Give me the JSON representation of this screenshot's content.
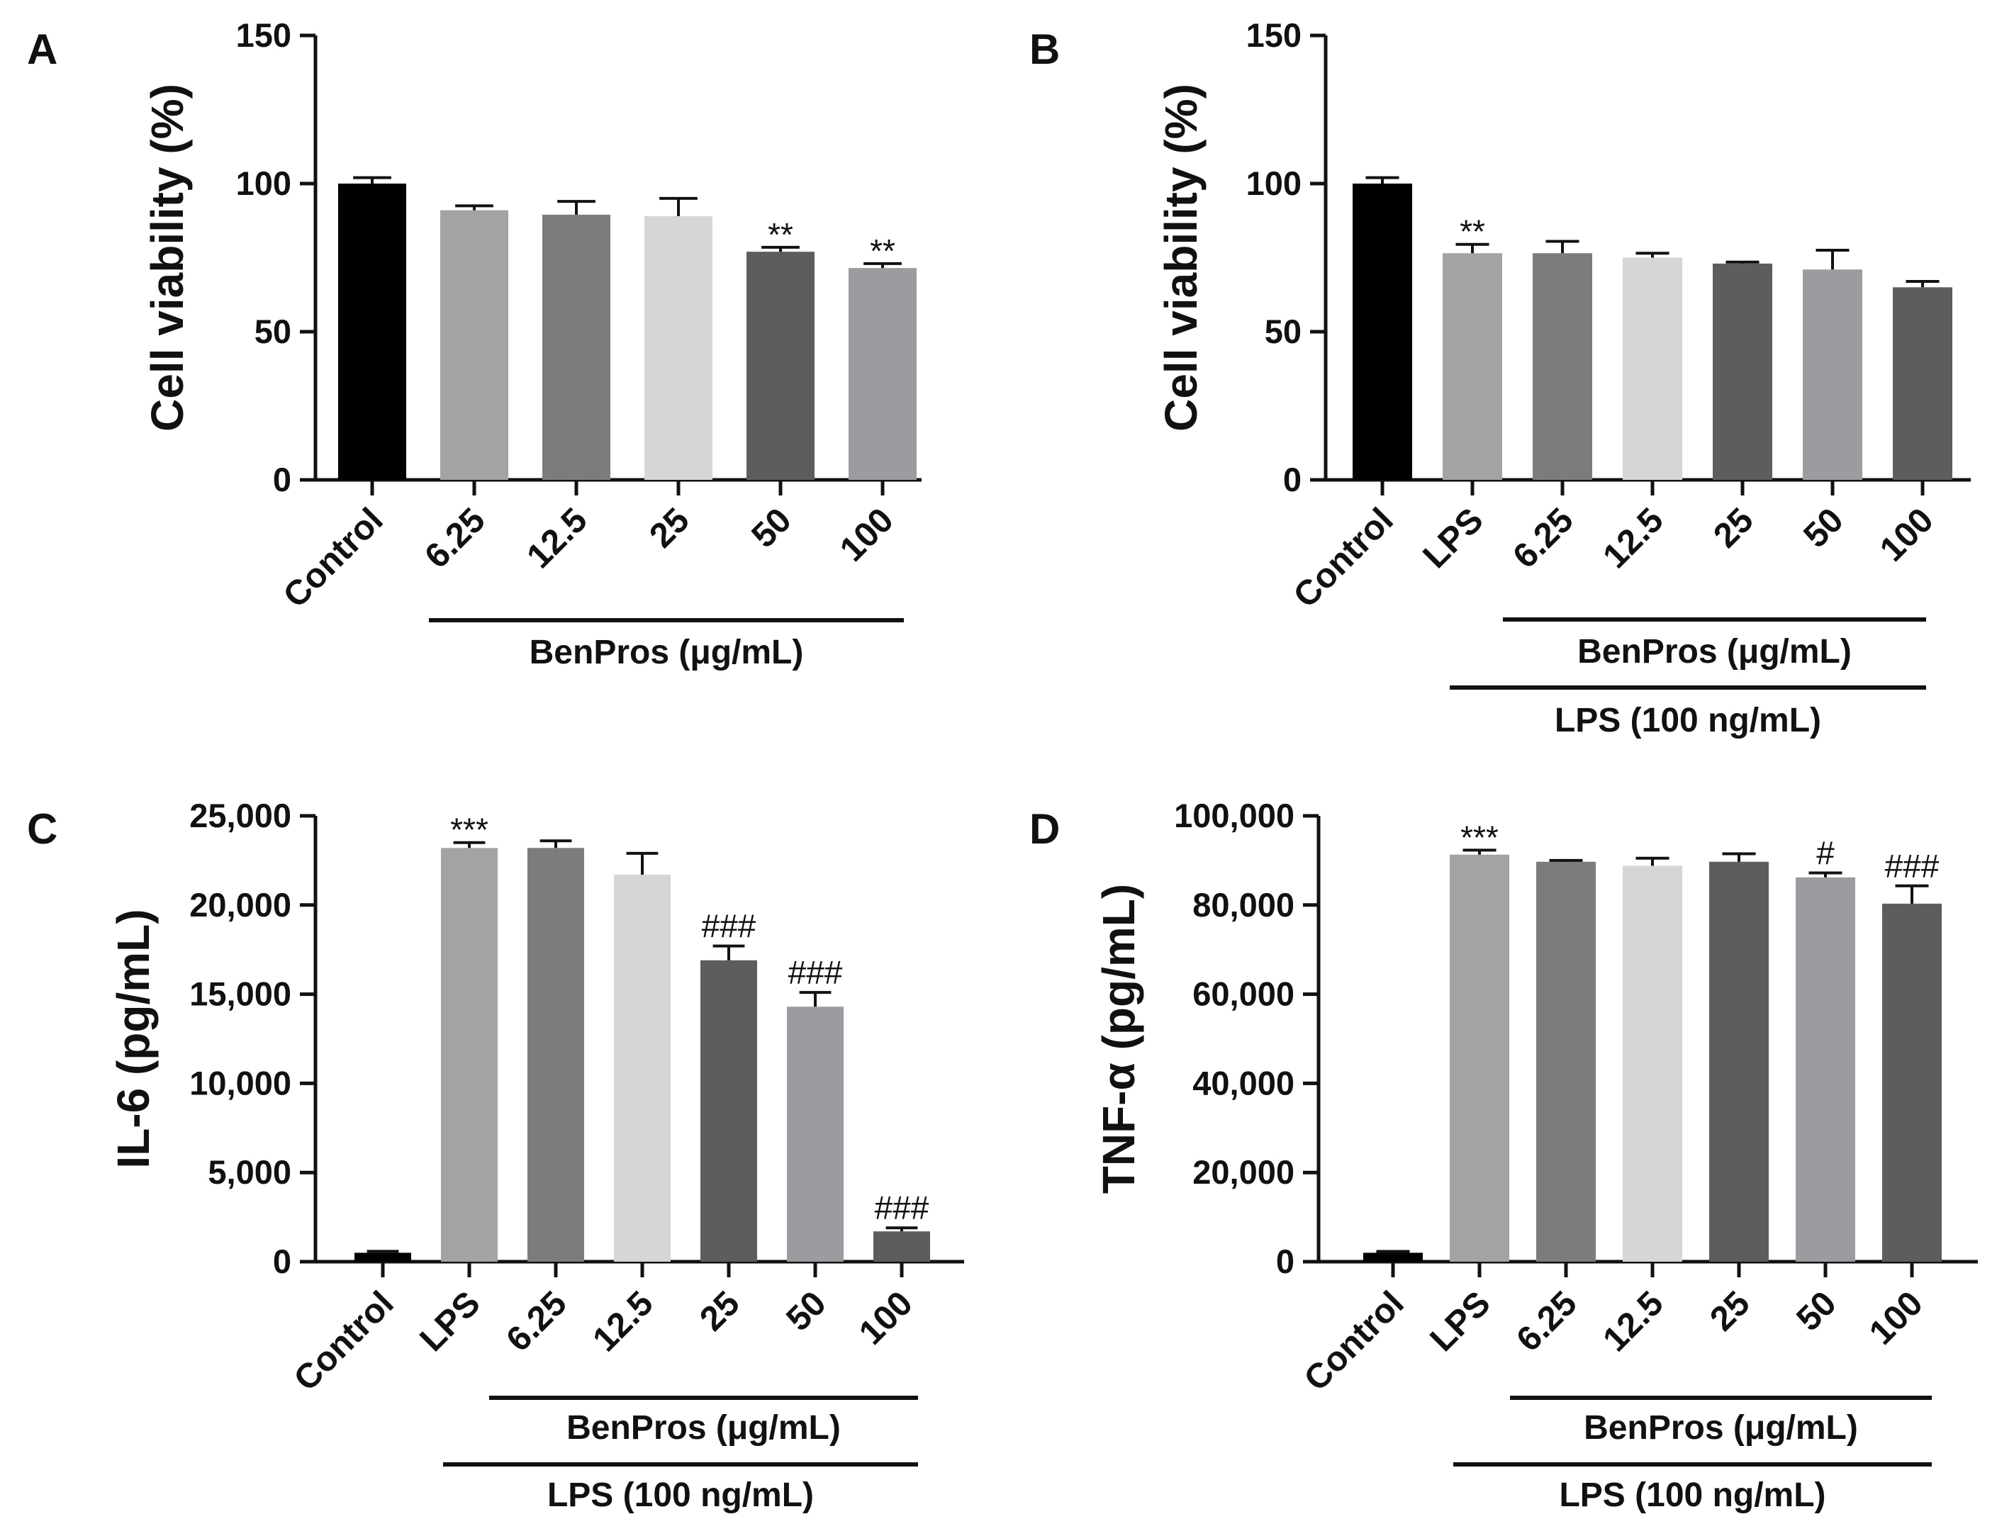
{
  "chart_data": [
    {
      "panel": "A",
      "type": "bar",
      "ylabel": "Cell viability (%)",
      "ylim": [
        0,
        150
      ],
      "yticks": [
        0,
        50,
        100,
        150
      ],
      "ytick_labels": [
        "0",
        "50",
        "100",
        "150"
      ],
      "categories": [
        "Control",
        "6.25",
        "12.5",
        "25",
        "50",
        "100"
      ],
      "values": [
        100,
        91,
        89.5,
        89,
        77,
        71.5
      ],
      "errors": [
        2,
        1.5,
        4.5,
        6,
        1.5,
        1.5
      ],
      "colors": [
        "#000000",
        "#a3a3a6",
        "#7c7c7e",
        "#d6d6d6",
        "#5d5d5d",
        "#9c9ca0"
      ],
      "annotations": [
        "",
        "",
        "",
        "",
        "**",
        "**"
      ],
      "groups": [
        {
          "label": "BenPros (μg/mL)",
          "from": 1,
          "to": 5
        }
      ]
    },
    {
      "panel": "B",
      "type": "bar",
      "ylabel": "Cell viability (%)",
      "ylim": [
        0,
        150
      ],
      "yticks": [
        0,
        50,
        100,
        150
      ],
      "ytick_labels": [
        "0",
        "50",
        "100",
        "150"
      ],
      "categories": [
        "Control",
        "LPS",
        "6.25",
        "12.5",
        "25",
        "50",
        "100"
      ],
      "values": [
        100,
        76.5,
        76.5,
        75,
        73,
        71,
        65
      ],
      "errors": [
        2,
        3,
        4,
        1.5,
        0.5,
        6.5,
        2
      ],
      "colors": [
        "#000000",
        "#a3a3a6",
        "#7c7c7e",
        "#d6d6d6",
        "#5d5d5d",
        "#9c9ca0",
        "#5d5d5d"
      ],
      "annotations": [
        "",
        "**",
        "",
        "",
        "",
        "",
        ""
      ],
      "groups": [
        {
          "label": "BenPros (μg/mL)",
          "from": 2,
          "to": 6
        },
        {
          "label": "LPS  (100 ng/mL)",
          "from": 1,
          "to": 6
        }
      ]
    },
    {
      "panel": "C",
      "type": "bar",
      "ylabel": "IL-6 (pg/mL)",
      "ylim": [
        0,
        25000
      ],
      "yticks": [
        0,
        5000,
        10000,
        15000,
        20000,
        25000
      ],
      "ytick_labels": [
        "0",
        "5,000",
        "10,000",
        "15,000",
        "20,000",
        "25,000"
      ],
      "categories": [
        "Control",
        "LPS",
        "6.25",
        "12.5",
        "25",
        "50",
        "100"
      ],
      "values": [
        500,
        23200,
        23200,
        21700,
        16900,
        14300,
        1700
      ],
      "errors": [
        80,
        300,
        400,
        1200,
        800,
        800,
        200
      ],
      "colors": [
        "#000000",
        "#a3a3a6",
        "#7c7c7e",
        "#d6d6d6",
        "#5d5d5d",
        "#9c9ca0",
        "#5d5d5d"
      ],
      "annotations": [
        "",
        "***",
        "",
        "",
        "###",
        "###",
        "###"
      ],
      "groups": [
        {
          "label": "BenPros (μg/mL)",
          "from": 2,
          "to": 6
        },
        {
          "label": "LPS  (100 ng/mL)",
          "from": 1,
          "to": 6
        }
      ]
    },
    {
      "panel": "D",
      "type": "bar",
      "ylabel": "TNF-α (pg/mL)",
      "ylim": [
        0,
        100000
      ],
      "yticks": [
        0,
        20000,
        40000,
        60000,
        80000,
        100000
      ],
      "ytick_labels": [
        "0",
        "20,000",
        "40,000",
        "60,000",
        "80,000",
        "100,000"
      ],
      "categories": [
        "Control",
        "LPS",
        "6.25",
        "12.5",
        "25",
        "50",
        "100"
      ],
      "values": [
        2000,
        91300,
        89700,
        88800,
        89700,
        86200,
        80300
      ],
      "errors": [
        300,
        1000,
        300,
        1700,
        1800,
        1000,
        4000
      ],
      "colors": [
        "#000000",
        "#a3a3a6",
        "#7c7c7e",
        "#d6d6d6",
        "#5d5d5d",
        "#9c9ca0",
        "#5d5d5d"
      ],
      "annotations": [
        "",
        "***",
        "",
        "",
        "",
        "#",
        "###"
      ],
      "groups": [
        {
          "label": "BenPros (μg/mL)",
          "from": 2,
          "to": 6
        },
        {
          "label": "LPS  (100 ng/mL)",
          "from": 1,
          "to": 6
        }
      ]
    }
  ]
}
